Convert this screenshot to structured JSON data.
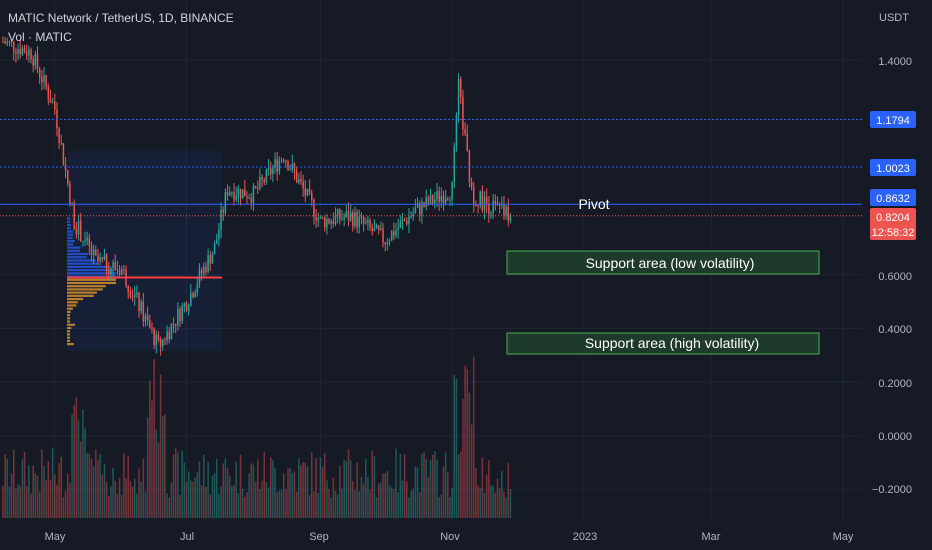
{
  "header": {
    "symbol": "MATIC Network / TetherUS, 1D, BINANCE",
    "volume": "Vol · MATIC"
  },
  "axis": {
    "currency": "USDT",
    "ticks": [
      "1.4000",
      "0.6000",
      "0.4000",
      "0.2000",
      "0.0000",
      "−0.2000"
    ],
    "xlabels": [
      "May",
      "Jul",
      "Sep",
      "Nov",
      "2023",
      "Mar",
      "May"
    ]
  },
  "badges": {
    "level1": "1.1794",
    "level2": "1.0023",
    "pivot": "0.8632",
    "last_price": "0.8204",
    "countdown": "12:58:32"
  },
  "annotations": {
    "pivot": "Pivot",
    "support_low": "Support area (low volatility)",
    "support_high": "Support area (high volatility)"
  },
  "colors": {
    "background": "#161a25",
    "up": "#26a69a",
    "down": "#ef5350",
    "level_line": "#2962ff",
    "support_fill": "#1e3a2a",
    "support_border": "#4caf50"
  },
  "chart_data": {
    "type": "candlestick",
    "y_range": [
      -0.3,
      1.6
    ],
    "horizontal_levels": [
      1.1794,
      1.0023,
      0.8632,
      0.8204
    ],
    "volume_profile_poc": 0.59,
    "support_zones": [
      {
        "name": "Support area (low volatility)",
        "range": [
          0.6,
          0.69
        ]
      },
      {
        "name": "Support area (high volatility)",
        "range": [
          0.31,
          0.39
        ]
      }
    ],
    "ohlc_points": [
      {
        "date": "2022-04-07",
        "close": 1.47
      },
      {
        "date": "2022-04-20",
        "close": 1.43
      },
      {
        "date": "2022-05-01",
        "close": 1.22
      },
      {
        "date": "2022-05-10",
        "close": 0.8
      },
      {
        "date": "2022-05-20",
        "close": 0.65
      },
      {
        "date": "2022-06-01",
        "close": 0.62
      },
      {
        "date": "2022-06-14",
        "close": 0.4
      },
      {
        "date": "2022-06-18",
        "close": 0.33
      },
      {
        "date": "2022-07-01",
        "close": 0.5
      },
      {
        "date": "2022-07-14",
        "close": 0.7
      },
      {
        "date": "2022-07-20",
        "close": 0.92
      },
      {
        "date": "2022-08-01",
        "close": 0.9
      },
      {
        "date": "2022-08-15",
        "close": 1.05
      },
      {
        "date": "2022-09-01",
        "close": 0.8
      },
      {
        "date": "2022-09-15",
        "close": 0.82
      },
      {
        "date": "2022-10-01",
        "close": 0.73
      },
      {
        "date": "2022-10-15",
        "close": 0.84
      },
      {
        "date": "2022-11-01",
        "close": 0.92
      },
      {
        "date": "2022-11-04",
        "close": 1.3
      },
      {
        "date": "2022-11-10",
        "close": 0.9
      },
      {
        "date": "2022-11-20",
        "close": 0.85
      },
      {
        "date": "2022-11-28",
        "close": 0.8204
      }
    ]
  }
}
